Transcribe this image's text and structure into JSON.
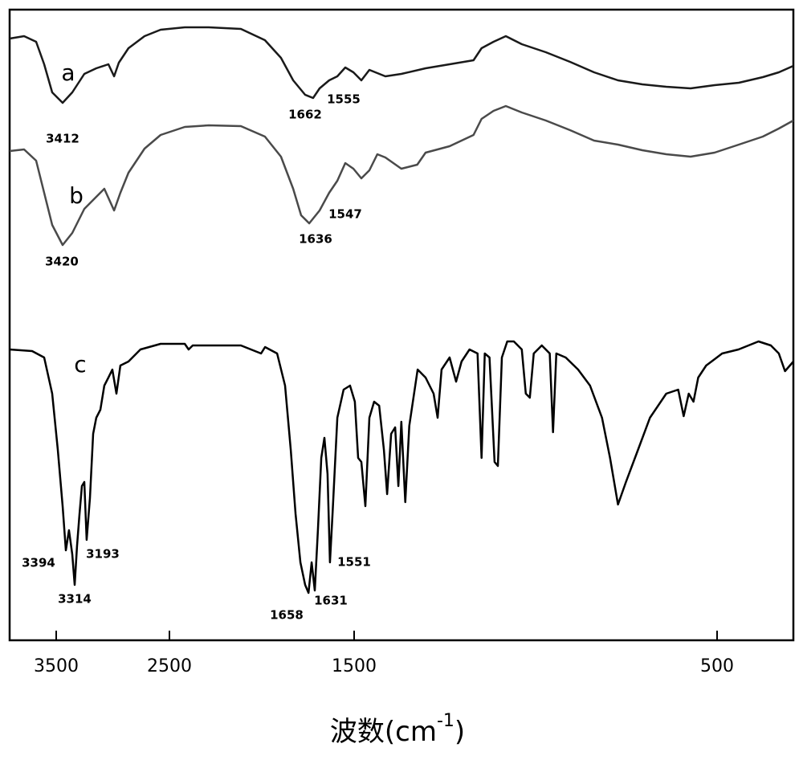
{
  "chart_data": {
    "type": "line",
    "xlabel": {
      "text": "波数(cm",
      "sup": "-1",
      "close": ")"
    },
    "xlim": [
      3910,
      290
    ],
    "xticks": [
      3500,
      2500,
      1500,
      500
    ],
    "ylim": [
      0,
      785
    ],
    "series": [
      {
        "name": "a",
        "color": "#1a1a1a",
        "x": [
          3910,
          3783,
          3677,
          3606,
          3535,
          3443,
          3358,
          3252,
          3146,
          3039,
          2989,
          2947,
          2862,
          2720,
          2578,
          2417,
          2287,
          2113,
          1983,
          1896,
          1830,
          1765,
          1722,
          1687,
          1635,
          1591,
          1548,
          1504,
          1480,
          1458,
          1414,
          1370,
          1303,
          1237,
          1171,
          1149,
          1116,
          1082,
          1038,
          972,
          905,
          839,
          773,
          706,
          640,
          573,
          507,
          440,
          374,
          330,
          290
        ],
        "values": [
          749,
          752,
          745,
          717,
          682,
          669,
          682,
          705,
          712,
          717,
          702,
          719,
          737,
          752,
          760,
          763,
          763,
          761,
          747,
          725,
          697,
          679,
          675,
          687,
          697,
          702,
          713,
          707,
          697,
          710,
          702,
          705,
          712,
          717,
          722,
          737,
          745,
          752,
          742,
          732,
          720,
          707,
          697,
          692,
          689,
          687,
          691,
          694,
          701,
          707,
          715
        ]
      },
      {
        "name": "b",
        "color": "#4a4a4a",
        "x": [
          3910,
          3783,
          3677,
          3606,
          3535,
          3443,
          3358,
          3252,
          3146,
          3075,
          2989,
          2933,
          2862,
          2720,
          2578,
          2417,
          2287,
          2113,
          1983,
          1896,
          1830,
          1787,
          1743,
          1687,
          1635,
          1591,
          1548,
          1504,
          1480,
          1458,
          1436,
          1414,
          1370,
          1326,
          1303,
          1237,
          1171,
          1149,
          1116,
          1082,
          1038,
          972,
          905,
          839,
          773,
          706,
          640,
          573,
          507,
          440,
          374,
          330,
          290
        ],
        "values": [
          609,
          611,
          597,
          557,
          517,
          492,
          507,
          537,
          552,
          562,
          535,
          557,
          582,
          612,
          629,
          639,
          641,
          640,
          627,
          602,
          562,
          529,
          519,
          535,
          557,
          572,
          594,
          587,
          575,
          585,
          605,
          601,
          587,
          592,
          607,
          615,
          629,
          649,
          659,
          665,
          657,
          647,
          635,
          622,
          617,
          610,
          605,
          602,
          607,
          617,
          627,
          637,
          647
        ]
      },
      {
        "name": "c",
        "color": "#000000",
        "x": [
          3910,
          3712,
          3606,
          3535,
          3486,
          3443,
          3415,
          3387,
          3358,
          3337,
          3316,
          3294,
          3273,
          3252,
          3231,
          3202,
          3174,
          3146,
          3110,
          3075,
          3039,
          3004,
          2968,
          2933,
          2862,
          2756,
          2578,
          2417,
          2396,
          2374,
          2113,
          2004,
          1982,
          1917,
          1874,
          1843,
          1817,
          1791,
          1765,
          1747,
          1730,
          1713,
          1696,
          1678,
          1661,
          1644,
          1631,
          1617,
          1591,
          1557,
          1522,
          1498,
          1489,
          1480,
          1469,
          1458,
          1445,
          1431,
          1418,
          1409,
          1398,
          1387,
          1378,
          1370,
          1359,
          1348,
          1325,
          1303,
          1281,
          1270,
          1259,
          1237,
          1219,
          1204,
          1182,
          1160,
          1149,
          1140,
          1127,
          1113,
          1104,
          1093,
          1078,
          1060,
          1038,
          1027,
          1016,
          1005,
          983,
          961,
          952,
          943,
          917,
          883,
          850,
          817,
          795,
          773,
          751,
          718,
          685,
          640,
          607,
          592,
          578,
          565,
          552,
          530,
          486,
          441,
          386,
          352,
          330,
          313,
          290
        ],
        "values": [
          362,
          360,
          352,
          307,
          237,
          167,
          112,
          137,
          107,
          69,
          117,
          157,
          192,
          197,
          125,
          177,
          257,
          277,
          287,
          317,
          327,
          337,
          307,
          342,
          347,
          362,
          369,
          369,
          362,
          367,
          367,
          357,
          365,
          357,
          317,
          237,
          157,
          97,
          69,
          59,
          97,
          62,
          137,
          227,
          252,
          207,
          97,
          157,
          277,
          312,
          317,
          297,
          227,
          222,
          167,
          277,
          297,
          292,
          237,
          182,
          257,
          265,
          192,
          272,
          172,
          267,
          337,
          327,
          307,
          277,
          337,
          352,
          322,
          347,
          362,
          357,
          227,
          357,
          352,
          222,
          217,
          352,
          372,
          372,
          362,
          307,
          302,
          357,
          367,
          357,
          259,
          357,
          352,
          337,
          317,
          277,
          227,
          169,
          197,
          237,
          277,
          307,
          312,
          279,
          307,
          297,
          327,
          342,
          357,
          362,
          372,
          367,
          357,
          335,
          347
        ]
      }
    ],
    "annotations": [
      "3412",
      "1662",
      "1555",
      "3420",
      "1636",
      "1547",
      "3394",
      "3314",
      "3193",
      "1658",
      "1631",
      "1551"
    ]
  }
}
